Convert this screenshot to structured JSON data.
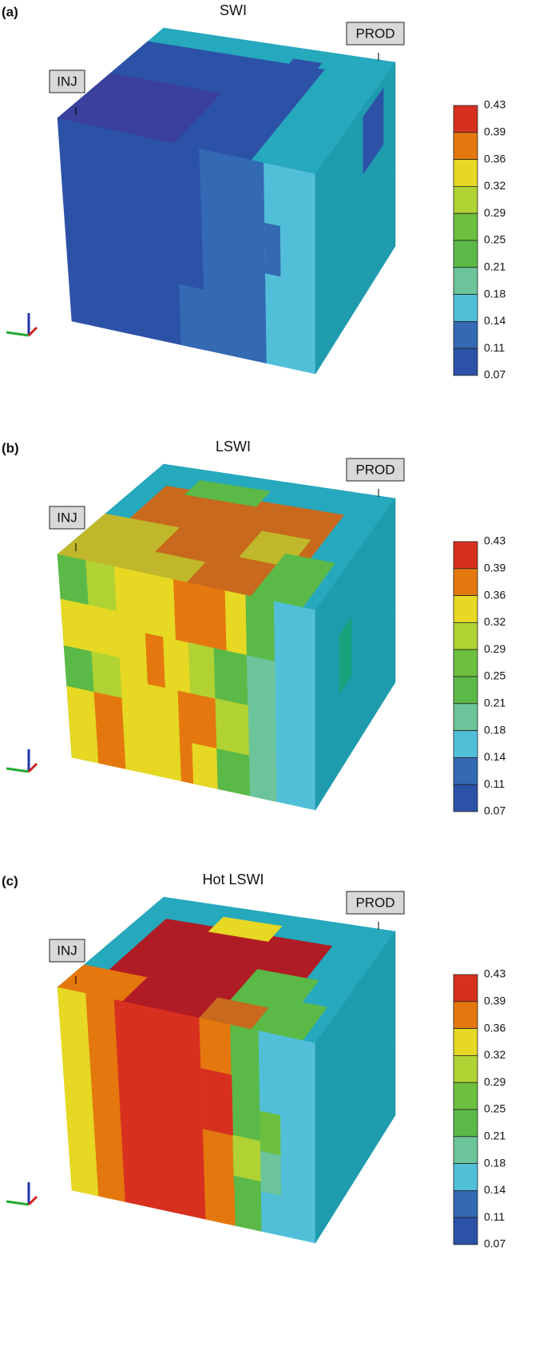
{
  "panels": [
    {
      "label": "(a)",
      "title": "SWI",
      "injector": "INJ",
      "producer": "PROD",
      "colorbar_ticks": [
        0.43,
        0.39,
        0.36,
        0.32,
        0.29,
        0.25,
        0.21,
        0.18,
        0.14,
        0.11,
        0.07
      ]
    },
    {
      "label": "(b)",
      "title": "LSWI",
      "injector": "INJ",
      "producer": "PROD",
      "colorbar_ticks": [
        0.43,
        0.39,
        0.36,
        0.32,
        0.29,
        0.25,
        0.21,
        0.18,
        0.14,
        0.11,
        0.07
      ]
    },
    {
      "label": "(c)",
      "title": "Hot LSWI",
      "injector": "INJ",
      "producer": "PROD",
      "colorbar_ticks": [
        0.43,
        0.39,
        0.36,
        0.32,
        0.29,
        0.25,
        0.21,
        0.18,
        0.14,
        0.11,
        0.07
      ]
    }
  ]
}
